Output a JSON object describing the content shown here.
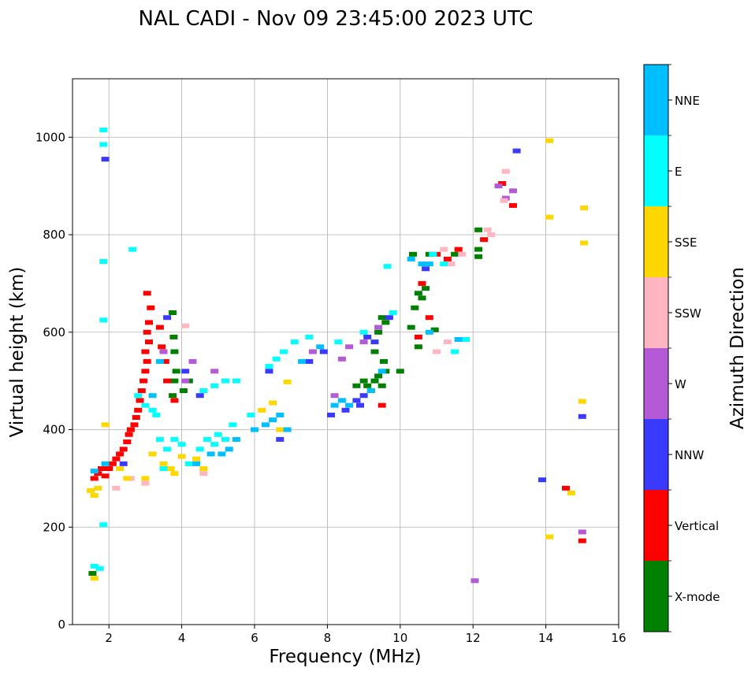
{
  "chart_data": {
    "type": "scatter",
    "title": "NAL CADI - Nov 09 23:45:00 2023 UTC",
    "xlabel": "Frequency (MHz)",
    "ylabel": "Virtual height (km)",
    "xlim": [
      1,
      16
    ],
    "ylim": [
      0,
      1120
    ],
    "xticks": [
      2,
      4,
      6,
      8,
      10,
      12,
      14,
      16
    ],
    "yticks": [
      0,
      200,
      400,
      600,
      800,
      1000
    ],
    "grid": true,
    "colorbar": {
      "label": "Azimuth Direction",
      "categories": [
        {
          "name": "X-mode",
          "color": "#008000"
        },
        {
          "name": "Vertical",
          "color": "#ff0000"
        },
        {
          "name": "NNW",
          "color": "#3a3aff"
        },
        {
          "name": "W",
          "color": "#b45ad6"
        },
        {
          "name": "SSW",
          "color": "#ffb6c1"
        },
        {
          "name": "SSE",
          "color": "#ffd700"
        },
        {
          "name": "E",
          "color": "#00ffff"
        },
        {
          "name": "NNE",
          "color": "#00bfff"
        }
      ]
    },
    "series": [
      {
        "name": "X-mode",
        "points": [
          [
            1.55,
            105
          ],
          [
            3.75,
            470
          ],
          [
            3.8,
            500
          ],
          [
            3.85,
            520
          ],
          [
            3.8,
            560
          ],
          [
            3.78,
            590
          ],
          [
            3.75,
            640
          ],
          [
            4.05,
            480
          ],
          [
            4.2,
            500
          ],
          [
            8.8,
            490
          ],
          [
            9.0,
            500
          ],
          [
            9.1,
            490
          ],
          [
            9.2,
            480
          ],
          [
            9.3,
            500
          ],
          [
            9.4,
            510
          ],
          [
            9.5,
            490
          ],
          [
            9.6,
            520
          ],
          [
            9.55,
            540
          ],
          [
            9.3,
            560
          ],
          [
            9.4,
            600
          ],
          [
            9.6,
            620
          ],
          [
            9.5,
            630
          ],
          [
            10.0,
            520
          ],
          [
            10.3,
            610
          ],
          [
            10.4,
            650
          ],
          [
            10.5,
            680
          ],
          [
            10.7,
            690
          ],
          [
            10.6,
            670
          ],
          [
            10.8,
            760
          ],
          [
            10.35,
            760
          ],
          [
            11.5,
            760
          ],
          [
            12.15,
            770
          ],
          [
            12.15,
            810
          ],
          [
            12.15,
            755
          ],
          [
            10.5,
            570
          ],
          [
            10.95,
            605
          ]
        ]
      },
      {
        "name": "Vertical",
        "points": [
          [
            1.6,
            300
          ],
          [
            1.7,
            310
          ],
          [
            1.8,
            320
          ],
          [
            1.9,
            305
          ],
          [
            2.0,
            320
          ],
          [
            2.1,
            330
          ],
          [
            2.2,
            340
          ],
          [
            2.3,
            350
          ],
          [
            2.4,
            360
          ],
          [
            2.5,
            375
          ],
          [
            2.55,
            390
          ],
          [
            2.6,
            400
          ],
          [
            2.7,
            410
          ],
          [
            2.75,
            425
          ],
          [
            2.8,
            440
          ],
          [
            2.85,
            460
          ],
          [
            2.9,
            480
          ],
          [
            2.95,
            500
          ],
          [
            3.0,
            520
          ],
          [
            3.05,
            540
          ],
          [
            3.0,
            560
          ],
          [
            3.1,
            580
          ],
          [
            3.05,
            600
          ],
          [
            3.1,
            620
          ],
          [
            3.15,
            650
          ],
          [
            3.05,
            680
          ],
          [
            3.45,
            570
          ],
          [
            3.55,
            540
          ],
          [
            3.4,
            610
          ],
          [
            3.6,
            500
          ],
          [
            3.8,
            460
          ],
          [
            9.5,
            450
          ],
          [
            10.5,
            590
          ],
          [
            10.6,
            700
          ],
          [
            10.8,
            630
          ],
          [
            11.0,
            760
          ],
          [
            11.3,
            750
          ],
          [
            11.6,
            770
          ],
          [
            12.3,
            790
          ],
          [
            12.8,
            905
          ],
          [
            13.1,
            860
          ],
          [
            14.55,
            280
          ],
          [
            15.0,
            172
          ]
        ]
      },
      {
        "name": "NNW",
        "points": [
          [
            1.9,
            955
          ],
          [
            2.4,
            330
          ],
          [
            3.6,
            630
          ],
          [
            4.1,
            520
          ],
          [
            4.5,
            470
          ],
          [
            6.4,
            520
          ],
          [
            6.7,
            380
          ],
          [
            7.5,
            540
          ],
          [
            7.9,
            560
          ],
          [
            8.1,
            430
          ],
          [
            8.5,
            440
          ],
          [
            8.8,
            460
          ],
          [
            8.9,
            450
          ],
          [
            9.0,
            470
          ],
          [
            9.1,
            590
          ],
          [
            9.3,
            580
          ],
          [
            9.7,
            630
          ],
          [
            10.7,
            730
          ],
          [
            13.2,
            972
          ],
          [
            13.9,
            297
          ],
          [
            15.0,
            427
          ]
        ]
      },
      {
        "name": "W",
        "points": [
          [
            3.5,
            560
          ],
          [
            4.1,
            500
          ],
          [
            4.3,
            540
          ],
          [
            4.9,
            520
          ],
          [
            7.6,
            560
          ],
          [
            8.2,
            470
          ],
          [
            8.4,
            545
          ],
          [
            8.6,
            570
          ],
          [
            9.0,
            580
          ],
          [
            9.4,
            610
          ],
          [
            12.05,
            90
          ],
          [
            12.7,
            900
          ],
          [
            12.9,
            875
          ],
          [
            13.1,
            890
          ],
          [
            15.0,
            190
          ]
        ]
      },
      {
        "name": "SSW",
        "points": [
          [
            2.2,
            280
          ],
          [
            2.6,
            300
          ],
          [
            3.0,
            290
          ],
          [
            4.1,
            613
          ],
          [
            4.6,
            310
          ],
          [
            11.0,
            560
          ],
          [
            11.3,
            580
          ],
          [
            11.4,
            740
          ],
          [
            11.2,
            770
          ],
          [
            11.7,
            760
          ],
          [
            12.5,
            800
          ],
          [
            12.4,
            810
          ],
          [
            12.9,
            930
          ],
          [
            12.85,
            870
          ]
        ]
      },
      {
        "name": "SSE",
        "points": [
          [
            1.5,
            275
          ],
          [
            1.6,
            265
          ],
          [
            1.7,
            280
          ],
          [
            1.9,
            410
          ],
          [
            2.3,
            320
          ],
          [
            2.5,
            300
          ],
          [
            3.0,
            300
          ],
          [
            3.2,
            350
          ],
          [
            3.5,
            330
          ],
          [
            3.7,
            320
          ],
          [
            3.8,
            310
          ],
          [
            4.0,
            345
          ],
          [
            4.2,
            330
          ],
          [
            4.4,
            340
          ],
          [
            4.6,
            320
          ],
          [
            6.2,
            440
          ],
          [
            6.5,
            455
          ],
          [
            6.7,
            400
          ],
          [
            6.9,
            498
          ],
          [
            14.1,
            993
          ],
          [
            14.1,
            836
          ],
          [
            15.05,
            855
          ],
          [
            15.05,
            783
          ],
          [
            15.0,
            458
          ],
          [
            14.7,
            270
          ],
          [
            14.1,
            180
          ],
          [
            1.6,
            95
          ]
        ]
      },
      {
        "name": "E",
        "points": [
          [
            1.6,
            120
          ],
          [
            1.75,
            115
          ],
          [
            1.85,
            1015
          ],
          [
            1.85,
            985
          ],
          [
            1.85,
            745
          ],
          [
            1.85,
            625
          ],
          [
            1.85,
            205
          ],
          [
            2.65,
            770
          ],
          [
            2.8,
            470
          ],
          [
            3.0,
            450
          ],
          [
            3.2,
            440
          ],
          [
            3.3,
            430
          ],
          [
            3.4,
            380
          ],
          [
            3.5,
            320
          ],
          [
            3.6,
            360
          ],
          [
            3.8,
            380
          ],
          [
            4.0,
            370
          ],
          [
            4.2,
            330
          ],
          [
            4.5,
            360
          ],
          [
            4.7,
            380
          ],
          [
            4.9,
            370
          ],
          [
            5.0,
            390
          ],
          [
            5.2,
            380
          ],
          [
            5.4,
            410
          ],
          [
            4.6,
            480
          ],
          [
            4.9,
            490
          ],
          [
            5.2,
            500
          ],
          [
            5.5,
            500
          ],
          [
            5.9,
            430
          ],
          [
            6.4,
            530
          ],
          [
            6.6,
            545
          ],
          [
            6.8,
            560
          ],
          [
            7.1,
            580
          ],
          [
            7.5,
            590
          ],
          [
            8.3,
            580
          ],
          [
            9.0,
            600
          ],
          [
            9.8,
            640
          ],
          [
            9.65,
            735
          ],
          [
            10.9,
            760
          ],
          [
            11.5,
            560
          ],
          [
            11.8,
            585
          ],
          [
            11.2,
            740
          ]
        ]
      },
      {
        "name": "NNE",
        "points": [
          [
            1.6,
            315
          ],
          [
            1.9,
            330
          ],
          [
            3.2,
            470
          ],
          [
            3.4,
            540
          ],
          [
            4.4,
            330
          ],
          [
            4.8,
            350
          ],
          [
            5.1,
            350
          ],
          [
            5.3,
            360
          ],
          [
            5.5,
            380
          ],
          [
            6.0,
            400
          ],
          [
            6.3,
            410
          ],
          [
            6.5,
            420
          ],
          [
            6.7,
            430
          ],
          [
            6.9,
            400
          ],
          [
            7.3,
            540
          ],
          [
            7.8,
            570
          ],
          [
            8.2,
            450
          ],
          [
            8.4,
            460
          ],
          [
            8.6,
            450
          ],
          [
            9.2,
            480
          ],
          [
            9.5,
            520
          ],
          [
            10.3,
            750
          ],
          [
            10.8,
            740
          ],
          [
            10.8,
            600
          ],
          [
            11.6,
            585
          ],
          [
            10.6,
            740
          ]
        ]
      }
    ]
  }
}
